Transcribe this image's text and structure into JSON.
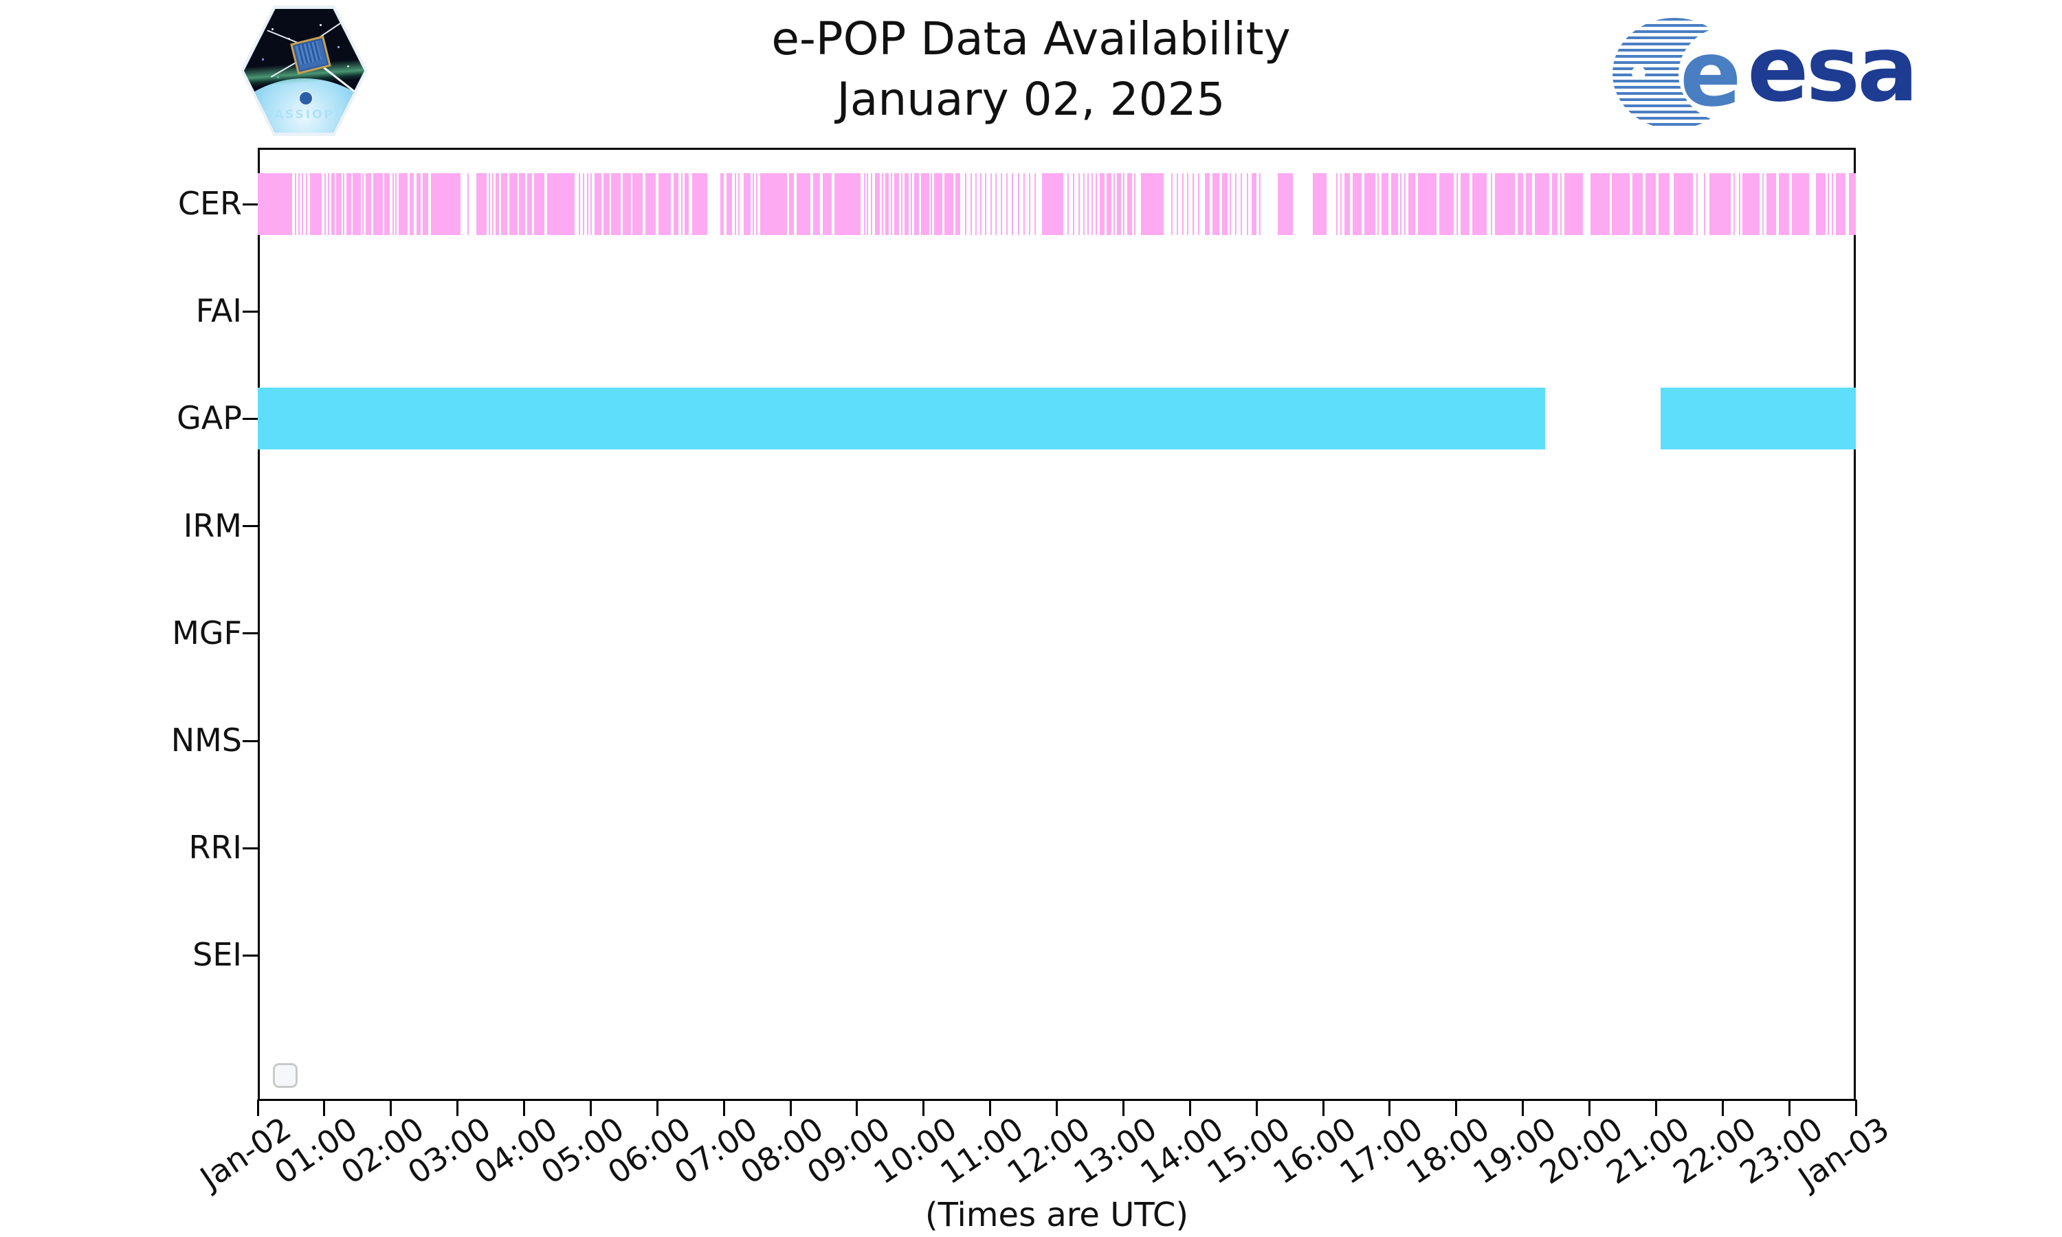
{
  "header": {
    "title_line1": "e-POP Data Availability",
    "title_line2": "January 02, 2025",
    "cassiope_label": "CASSIOPE",
    "esa_e": "e",
    "esa_label": "esa"
  },
  "footer": {
    "axis_note": "(Times are UTC)"
  },
  "colors": {
    "cer_pink": "#fdaaf3",
    "gap_cyan": "#5fdefb",
    "axis_black": "#000000",
    "esa_text_blue": "#1e3c92",
    "esa_stripe_blue": "#4a7ec2",
    "legend_border_gray": "#c9c9c9"
  },
  "chart_data": {
    "type": "timeline-availability",
    "title": "e-POP Data Availability — January 02, 2025",
    "x_axis": {
      "start": "Jan-02 00:00 UTC",
      "end": "Jan-03 00:00 UTC",
      "total_hours": 24,
      "tick_interval_hours": 1,
      "tick_labels": [
        "Jan-02",
        "01:00",
        "02:00",
        "03:00",
        "04:00",
        "05:00",
        "06:00",
        "07:00",
        "08:00",
        "09:00",
        "10:00",
        "11:00",
        "12:00",
        "13:00",
        "14:00",
        "15:00",
        "16:00",
        "17:00",
        "18:00",
        "19:00",
        "20:00",
        "21:00",
        "22:00",
        "23:00",
        "Jan-03"
      ],
      "note": "(Times are UTC)"
    },
    "rows": [
      "CER",
      "FAI",
      "GAP",
      "IRM",
      "MGF",
      "NMS",
      "RRI",
      "SEI"
    ],
    "legend": {
      "visible": true,
      "entries": []
    },
    "series": [
      {
        "name": "CER",
        "color": "#fdaaf3",
        "segments_hours": [
          [
            0.0,
            0.52
          ],
          [
            0.56,
            0.58
          ],
          [
            0.61,
            0.63
          ],
          [
            0.66,
            0.68
          ],
          [
            0.72,
            0.74
          ],
          [
            0.78,
            0.96
          ],
          [
            1.0,
            1.02
          ],
          [
            1.05,
            1.07
          ],
          [
            1.1,
            1.16
          ],
          [
            1.18,
            1.26
          ],
          [
            1.28,
            1.3
          ],
          [
            1.33,
            1.4
          ],
          [
            1.42,
            1.55
          ],
          [
            1.57,
            1.59
          ],
          [
            1.62,
            1.7
          ],
          [
            1.73,
            1.88
          ],
          [
            1.9,
            1.98
          ],
          [
            2.02,
            2.04
          ],
          [
            2.06,
            2.08
          ],
          [
            2.12,
            2.25
          ],
          [
            2.28,
            2.34
          ],
          [
            2.38,
            2.45
          ],
          [
            2.48,
            2.56
          ],
          [
            2.6,
            3.05
          ],
          [
            3.15,
            3.17
          ],
          [
            3.28,
            3.44
          ],
          [
            3.47,
            3.49
          ],
          [
            3.52,
            3.54
          ],
          [
            3.57,
            3.62
          ],
          [
            3.65,
            3.75
          ],
          [
            3.78,
            3.9
          ],
          [
            3.92,
            4.02
          ],
          [
            4.05,
            4.12
          ],
          [
            4.15,
            4.3
          ],
          [
            4.35,
            4.76
          ],
          [
            4.82,
            4.84
          ],
          [
            4.88,
            4.9
          ],
          [
            4.94,
            4.96
          ],
          [
            5.0,
            5.02
          ],
          [
            5.06,
            5.16
          ],
          [
            5.19,
            5.28
          ],
          [
            5.31,
            5.45
          ],
          [
            5.48,
            5.6
          ],
          [
            5.63,
            5.78
          ],
          [
            5.82,
            5.98
          ],
          [
            6.02,
            6.2
          ],
          [
            6.24,
            6.32
          ],
          [
            6.36,
            6.38
          ],
          [
            6.41,
            6.47
          ],
          [
            6.52,
            6.75
          ],
          [
            6.95,
            7.0
          ],
          [
            7.04,
            7.12
          ],
          [
            7.16,
            7.18
          ],
          [
            7.22,
            7.24
          ],
          [
            7.3,
            7.4
          ],
          [
            7.43,
            7.45
          ],
          [
            7.48,
            7.5
          ],
          [
            7.55,
            7.95
          ],
          [
            7.98,
            8.05
          ],
          [
            8.09,
            8.3
          ],
          [
            8.34,
            8.44
          ],
          [
            8.48,
            8.62
          ],
          [
            8.66,
            9.05
          ],
          [
            9.1,
            9.12
          ],
          [
            9.15,
            9.17
          ],
          [
            9.21,
            9.23
          ],
          [
            9.27,
            9.34
          ],
          [
            9.37,
            9.39
          ],
          [
            9.42,
            9.48
          ],
          [
            9.51,
            9.53
          ],
          [
            9.56,
            9.63
          ],
          [
            9.66,
            9.68
          ],
          [
            9.71,
            9.78
          ],
          [
            9.81,
            9.83
          ],
          [
            9.86,
            9.93
          ],
          [
            9.96,
            10.08
          ],
          [
            10.11,
            10.13
          ],
          [
            10.16,
            10.28
          ],
          [
            10.31,
            10.45
          ],
          [
            10.48,
            10.55
          ],
          [
            10.62,
            10.64
          ],
          [
            10.7,
            10.72
          ],
          [
            10.78,
            10.8
          ],
          [
            10.85,
            10.87
          ],
          [
            10.92,
            10.94
          ],
          [
            11.0,
            11.02
          ],
          [
            11.08,
            11.1
          ],
          [
            11.16,
            11.18
          ],
          [
            11.24,
            11.26
          ],
          [
            11.32,
            11.34
          ],
          [
            11.42,
            11.44
          ],
          [
            11.5,
            11.52
          ],
          [
            11.58,
            11.6
          ],
          [
            11.66,
            11.68
          ],
          [
            11.78,
            12.1
          ],
          [
            12.16,
            12.18
          ],
          [
            12.24,
            12.26
          ],
          [
            12.32,
            12.34
          ],
          [
            12.4,
            12.42
          ],
          [
            12.46,
            12.48
          ],
          [
            12.52,
            12.54
          ],
          [
            12.58,
            12.6
          ],
          [
            12.65,
            12.72
          ],
          [
            12.75,
            12.82
          ],
          [
            12.85,
            12.87
          ],
          [
            12.9,
            12.97
          ],
          [
            13.0,
            13.02
          ],
          [
            13.06,
            13.13
          ],
          [
            13.16,
            13.18
          ],
          [
            13.26,
            13.6
          ],
          [
            13.72,
            13.74
          ],
          [
            13.8,
            13.82
          ],
          [
            13.88,
            13.9
          ],
          [
            13.96,
            13.98
          ],
          [
            14.04,
            14.06
          ],
          [
            14.12,
            14.14
          ],
          [
            14.22,
            14.3
          ],
          [
            14.34,
            14.44
          ],
          [
            14.48,
            14.56
          ],
          [
            14.6,
            14.62
          ],
          [
            14.68,
            14.7
          ],
          [
            14.76,
            14.78
          ],
          [
            14.85,
            14.87
          ],
          [
            14.93,
            15.0
          ],
          [
            15.04,
            15.06
          ],
          [
            15.32,
            15.55
          ],
          [
            15.85,
            16.05
          ],
          [
            16.2,
            16.22
          ],
          [
            16.26,
            16.28
          ],
          [
            16.32,
            16.4
          ],
          [
            16.44,
            16.58
          ],
          [
            16.62,
            16.78
          ],
          [
            16.82,
            16.84
          ],
          [
            16.88,
            16.98
          ],
          [
            17.02,
            17.12
          ],
          [
            17.16,
            17.18
          ],
          [
            17.22,
            17.24
          ],
          [
            17.28,
            17.38
          ],
          [
            17.42,
            17.7
          ],
          [
            17.74,
            17.96
          ],
          [
            18.0,
            18.02
          ],
          [
            18.06,
            18.2
          ],
          [
            18.24,
            18.46
          ],
          [
            18.52,
            18.54
          ],
          [
            18.58,
            18.88
          ],
          [
            18.92,
            19.0
          ],
          [
            19.04,
            19.14
          ],
          [
            19.18,
            19.4
          ],
          [
            19.44,
            19.52
          ],
          [
            19.56,
            19.58
          ],
          [
            19.62,
            19.9
          ],
          [
            20.02,
            20.3
          ],
          [
            20.34,
            20.6
          ],
          [
            20.64,
            20.8
          ],
          [
            20.84,
            21.0
          ],
          [
            21.04,
            21.2
          ],
          [
            21.26,
            21.55
          ],
          [
            21.6,
            21.62
          ],
          [
            21.72,
            21.74
          ],
          [
            21.8,
            22.12
          ],
          [
            22.16,
            22.18
          ],
          [
            22.24,
            22.26
          ],
          [
            22.3,
            22.55
          ],
          [
            22.6,
            22.62
          ],
          [
            22.66,
            22.8
          ],
          [
            22.84,
            23.0
          ],
          [
            23.04,
            23.3
          ],
          [
            23.4,
            23.55
          ],
          [
            23.58,
            23.6
          ],
          [
            23.64,
            23.66
          ],
          [
            23.7,
            23.85
          ],
          [
            23.9,
            24.0
          ]
        ]
      },
      {
        "name": "FAI",
        "color": null,
        "segments_hours": []
      },
      {
        "name": "GAP",
        "color": "#5fdefb",
        "segments_hours": [
          [
            0.0,
            19.33
          ],
          [
            21.07,
            24.0
          ]
        ]
      },
      {
        "name": "IRM",
        "color": null,
        "segments_hours": []
      },
      {
        "name": "MGF",
        "color": null,
        "segments_hours": []
      },
      {
        "name": "NMS",
        "color": null,
        "segments_hours": []
      },
      {
        "name": "RRI",
        "color": null,
        "segments_hours": []
      },
      {
        "name": "SEI",
        "color": null,
        "segments_hours": []
      }
    ]
  }
}
